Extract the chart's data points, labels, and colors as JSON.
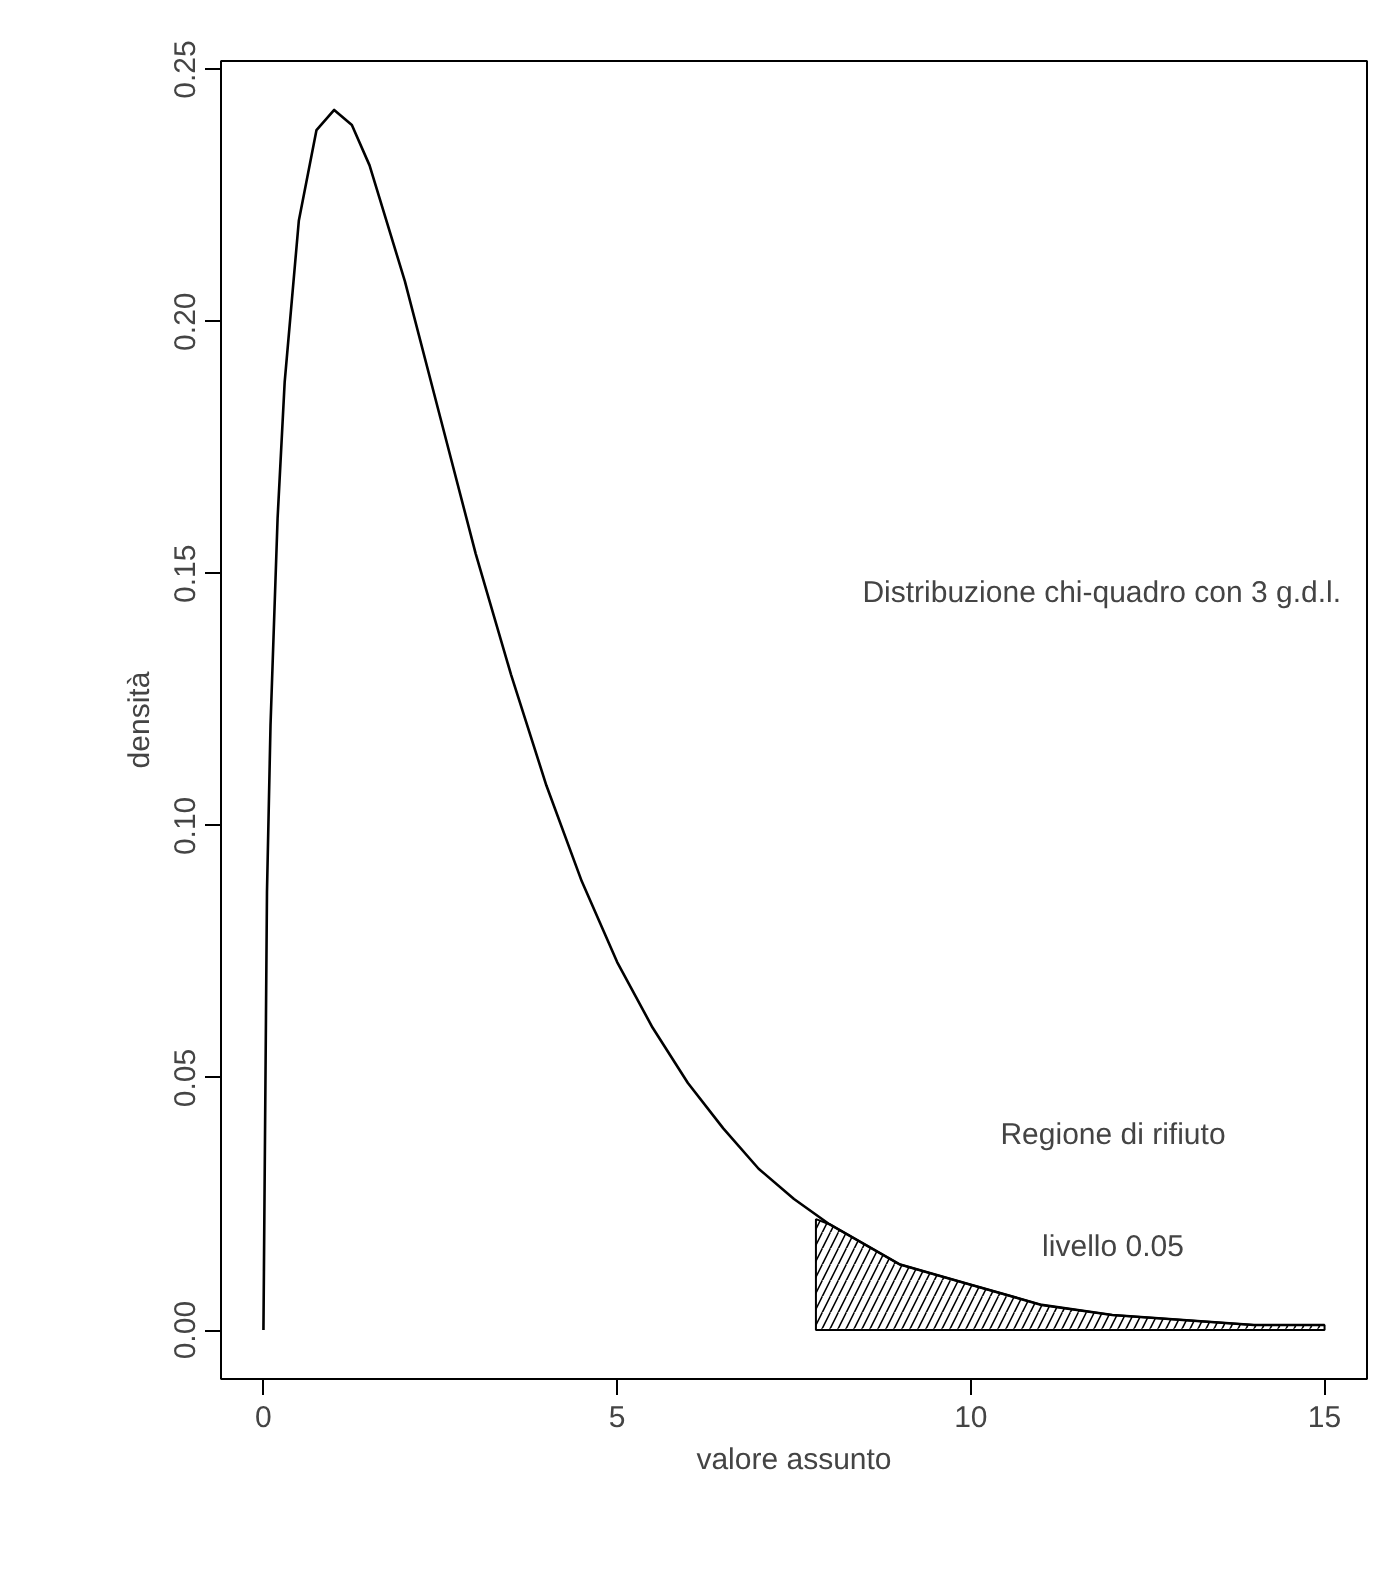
{
  "chart_data": {
    "type": "line",
    "xlabel": "valore assunto",
    "ylabel": "densità",
    "xlim": [
      -0.6,
      15.6
    ],
    "ylim": [
      -0.0097,
      0.2517
    ],
    "xticks": [
      0,
      5,
      10,
      15
    ],
    "yticks": [
      {
        "value": 0,
        "label": "0.00"
      },
      {
        "value": 0.05,
        "label": "0.05"
      },
      {
        "value": 0.1,
        "label": "0.10"
      },
      {
        "value": 0.15,
        "label": "0.15"
      },
      {
        "value": 0.2,
        "label": "0.20"
      },
      {
        "value": 0.25,
        "label": "0.25"
      }
    ],
    "grid": false,
    "series": [
      {
        "color": "#000000",
        "x": [
          0,
          0.05,
          0.1,
          0.2,
          0.3,
          0.5,
          0.75,
          1,
          1.25,
          1.5,
          2,
          2.5,
          3,
          3.5,
          4,
          4.5,
          5,
          5.5,
          6,
          6.5,
          7,
          7.5,
          8,
          9,
          10,
          11,
          12,
          13,
          14,
          15
        ],
        "values": [
          0,
          0.087,
          0.12,
          0.161,
          0.188,
          0.22,
          0.238,
          0.242,
          0.239,
          0.231,
          0.208,
          0.181,
          0.154,
          0.13,
          0.108,
          0.089,
          0.073,
          0.06,
          0.049,
          0.04,
          0.032,
          0.026,
          0.021,
          0.013,
          0.009,
          0.005,
          0.003,
          0.002,
          0.001,
          0.001
        ]
      },
      {
        "type": "area",
        "color": "#000000",
        "x": [
          7.81,
          8,
          9,
          10,
          11,
          12,
          13,
          14,
          15
        ],
        "values": [
          0.022,
          0.021,
          0.013,
          0.009,
          0.005,
          0.003,
          0.002,
          0.001,
          0.001
        ]
      }
    ],
    "annotations": [
      "Distribuzione chi-quadro con 3 g.d.l.",
      "Regione di rifiuto",
      "livello 0.05"
    ]
  }
}
